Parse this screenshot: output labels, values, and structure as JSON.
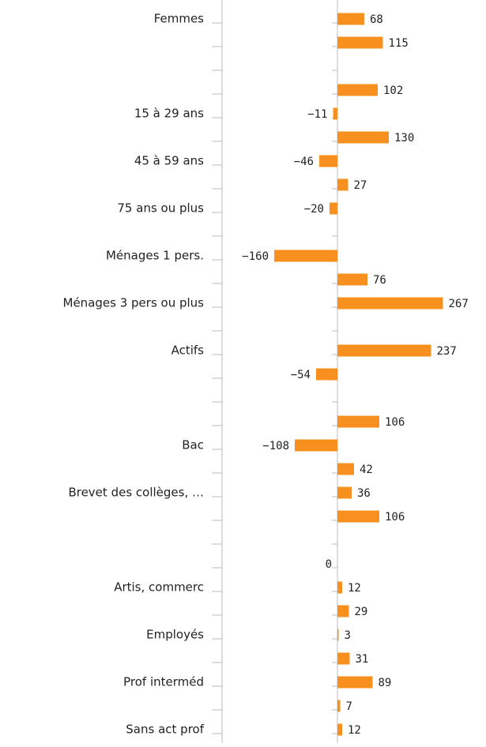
{
  "chart_data": {
    "type": "barh",
    "color": "#f7901e",
    "categories": [
      "Femmes",
      null,
      null,
      null,
      "15 à 29 ans",
      null,
      "45 à 59 ans",
      null,
      "75 ans ou plus",
      null,
      "Ménages 1 pers.",
      null,
      "Ménages 3 pers ou plus",
      null,
      "Actifs",
      null,
      null,
      null,
      "Bac",
      null,
      "Brevet des collèges, …",
      null,
      null,
      null,
      "Artis, commerc",
      null,
      "Employés",
      null,
      "Prof interméd",
      null,
      "Sans act prof"
    ],
    "values": [
      68,
      115,
      null,
      102,
      -11,
      130,
      -46,
      27,
      -20,
      null,
      -160,
      76,
      267,
      null,
      237,
      -54,
      null,
      106,
      -108,
      42,
      36,
      106,
      null,
      0,
      12,
      29,
      3,
      31,
      89,
      7,
      12
    ],
    "value_labels": [
      "68",
      "115",
      null,
      "102",
      "−11",
      "130",
      "−46",
      "27",
      "−20",
      null,
      "−160",
      "76",
      "267",
      null,
      "237",
      "−54",
      null,
      "106",
      "−108",
      "42",
      "36",
      "106",
      null,
      "0",
      "12",
      "29",
      "3",
      "31",
      "89",
      "7",
      "12"
    ]
  }
}
